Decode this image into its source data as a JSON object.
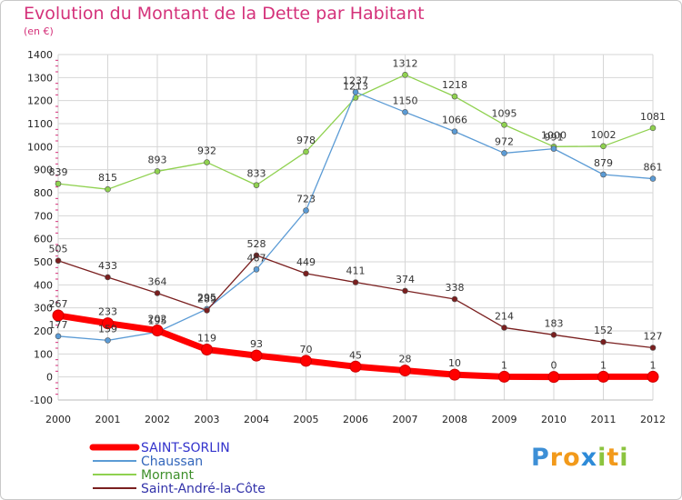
{
  "chart_data": {
    "type": "line",
    "title": "Evolution du Montant de la Dette par Habitant",
    "subtitle": "(en €)",
    "x": [
      "2000",
      "2001",
      "2002",
      "2003",
      "2004",
      "2005",
      "2006",
      "2007",
      "2008",
      "2009",
      "2010",
      "2011",
      "2012"
    ],
    "ylim": [
      -100,
      1400
    ],
    "yticks": [
      -100,
      0,
      100,
      200,
      300,
      400,
      500,
      600,
      700,
      800,
      900,
      1000,
      1100,
      1200,
      1300,
      1400
    ],
    "grid": true,
    "legend_position": "bottom-left",
    "series": [
      {
        "name": "SAINT-SORLIN",
        "color": "#ff0000",
        "values": [
          267,
          233,
          202,
          119,
          93,
          70,
          45,
          28,
          10,
          1,
          0,
          1,
          1
        ]
      },
      {
        "name": "Chaussan",
        "color": "#5b9bd5",
        "values": [
          177,
          159,
          195,
          295,
          467,
          723,
          1237,
          1150,
          1066,
          972,
          991,
          879,
          861
        ]
      },
      {
        "name": "Mornant",
        "color": "#8fd14f",
        "values": [
          839,
          815,
          893,
          932,
          833,
          978,
          1213,
          1312,
          1218,
          1095,
          1000,
          1002,
          1081
        ]
      },
      {
        "name": "Saint-André-la-Côte",
        "color": "#7a1f1f",
        "values": [
          505,
          433,
          364,
          289,
          528,
          449,
          411,
          374,
          338,
          214,
          183,
          152,
          127
        ]
      }
    ]
  },
  "logo": {
    "letters": [
      "P",
      "r",
      "o",
      "x",
      "i",
      "t",
      "i"
    ],
    "colors": [
      "#3d8fd6",
      "#f29a1b",
      "#f29a1b",
      "#2e8bd8",
      "#8cc43f",
      "#f29a1b",
      "#8cc43f"
    ]
  }
}
